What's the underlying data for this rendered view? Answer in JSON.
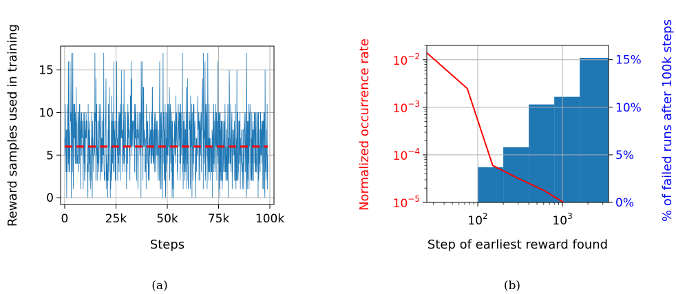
{
  "chart_data": [
    {
      "panel": "(a)",
      "type": "line",
      "caption": "(a)",
      "xlabel": "Steps",
      "ylabel": "Reward samples used in training",
      "xlim": [
        -2000,
        102000
      ],
      "ylim": [
        -0.8,
        17.8
      ],
      "xticks": [
        0,
        25000,
        50000,
        75000,
        100000
      ],
      "xtick_labels": [
        "0",
        "25k",
        "50k",
        "75k",
        "100k"
      ],
      "yticks": [
        0,
        5,
        10,
        15
      ],
      "ytick_labels": [
        "0",
        "5",
        "10",
        "15"
      ],
      "grid": true,
      "series": [
        {
          "style": "noisy-line",
          "color": "#1f77b4",
          "x_range": [
            0,
            99000
          ],
          "value_range": [
            0,
            17
          ],
          "typical_range": [
            2,
            11
          ],
          "mean": 6
        },
        {
          "style": "dashed",
          "color": "#ff0000",
          "x": [
            0,
            99000
          ],
          "values": [
            6,
            6
          ]
        }
      ]
    },
    {
      "panel": "(b)",
      "type": "bar",
      "caption": "(b)",
      "xlabel": "Step of earliest reward found",
      "ylabel": "Normalized occurrence rate",
      "ylabel_right": "% of failed runs after 100k steps",
      "x_scale": "log",
      "y_scale": "log",
      "xlim": [
        25,
        3500
      ],
      "ylim": [
        1e-05,
        0.02
      ],
      "ylim_right": [
        0,
        16.5
      ],
      "xticks": [
        100,
        1000
      ],
      "xtick_base": [
        "10",
        "10"
      ],
      "xtick_exp": [
        "2",
        "3"
      ],
      "yticks": [
        1e-05,
        0.0001,
        0.001,
        0.01
      ],
      "ytick_base": [
        "10",
        "10",
        "10",
        "10"
      ],
      "ytick_exp": [
        "−5",
        "−4",
        "−3",
        "−2"
      ],
      "yticks_right": [
        0,
        5,
        10,
        15
      ],
      "ytick_labels_right": [
        "0%",
        "5%",
        "10%",
        "15%"
      ],
      "grid": true,
      "colors": {
        "line": "#ff0000",
        "bars": "#1f77b4",
        "left_axis": "#ff0000",
        "right_axis": "#0000ff"
      },
      "bars": [
        {
          "x0": 100,
          "x1": 200,
          "value": 3.7
        },
        {
          "x0": 200,
          "x1": 400,
          "value": 5.8
        },
        {
          "x0": 400,
          "x1": 800,
          "value": 10.3
        },
        {
          "x0": 800,
          "x1": 1600,
          "value": 11.1
        },
        {
          "x0": 1600,
          "x1": 3500,
          "value": 15.2
        }
      ],
      "series": [
        {
          "color": "#ff0000",
          "x": [
            25,
            75,
            150,
            300,
            600,
            1200,
            2200
          ],
          "values": [
            0.014,
            0.0025,
            6e-05,
            3.2e-05,
            1.8e-05,
            8.5e-06,
            1e-05
          ]
        }
      ]
    }
  ]
}
